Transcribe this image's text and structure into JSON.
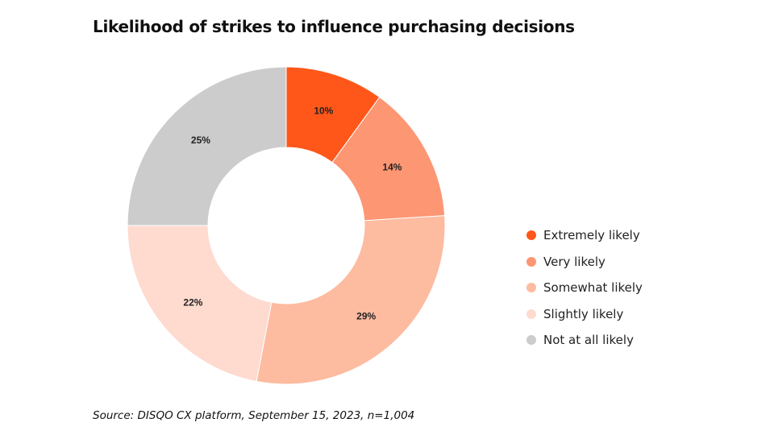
{
  "title": "Likelihood of strikes to influence purchasing decisions",
  "source": "Source: DISQO CX platform, September 15, 2023, n=1,004",
  "chart_data": {
    "type": "pie",
    "title": "Likelihood of strikes to influence purchasing decisions",
    "donut": true,
    "start": "top",
    "direction": "clockwise",
    "legend_position": "right",
    "slices": [
      {
        "name": "Extremely likely",
        "value": 10,
        "label": "10%",
        "color": "#ff5719"
      },
      {
        "name": "Very likely",
        "value": 14,
        "label": "14%",
        "color": "#fd9673"
      },
      {
        "name": "Somewhat likely",
        "value": 29,
        "label": "29%",
        "color": "#fdbba0"
      },
      {
        "name": "Slightly likely",
        "value": 22,
        "label": "22%",
        "color": "#fedacf"
      },
      {
        "name": "Not at all likely",
        "value": 25,
        "label": "25%",
        "color": "#cccccc"
      }
    ]
  }
}
